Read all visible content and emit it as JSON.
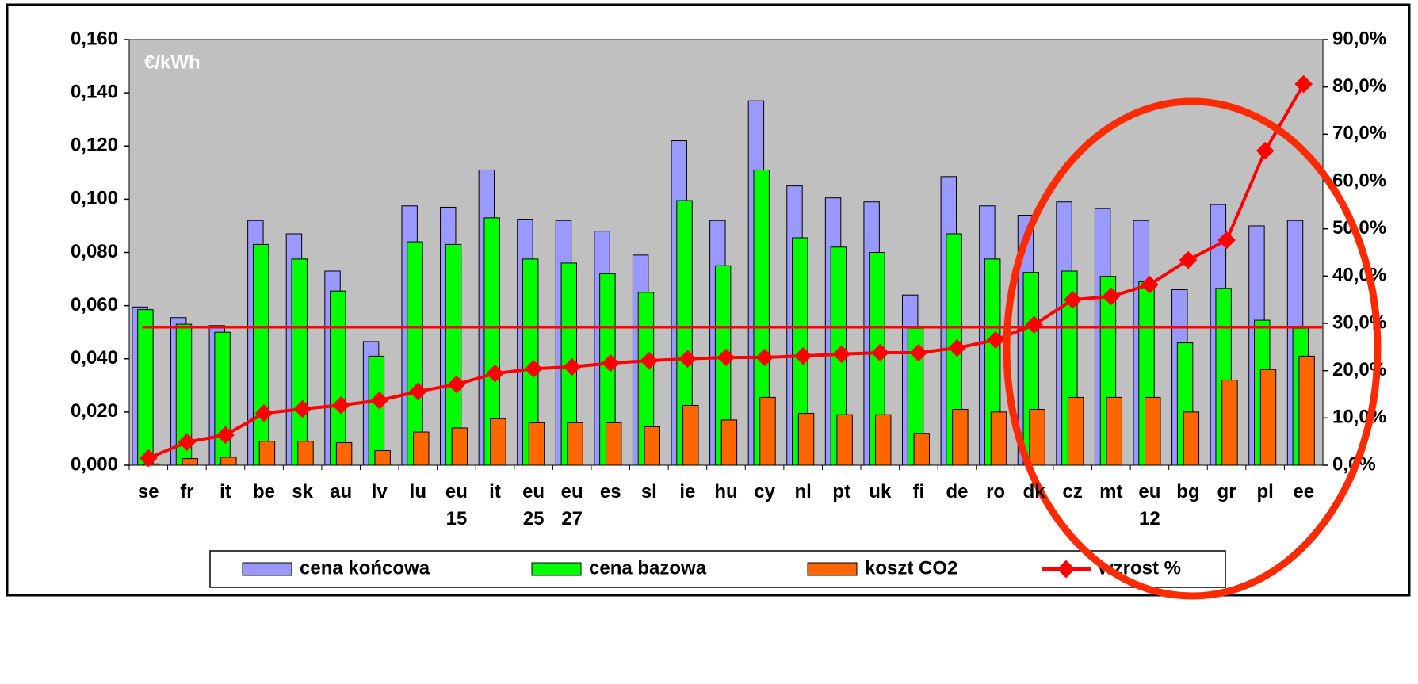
{
  "chart_data": {
    "type": "bar",
    "unit_label": "€/kWh",
    "categories": [
      "se",
      "fr",
      "it",
      "be",
      "sk",
      "au",
      "lv",
      "lu",
      "eu 15",
      "it",
      "eu 25",
      "eu 27",
      "es",
      "sl",
      "ie",
      "hu",
      "cy",
      "nl",
      "pt",
      "uk",
      "fi",
      "de",
      "ro",
      "dk",
      "cz",
      "mt",
      "eu 12",
      "bg",
      "gr",
      "pl",
      "ee"
    ],
    "series": [
      {
        "name": "cena końcowa",
        "color": "#9999ff",
        "values": [
          0.0595,
          0.0555,
          0.0525,
          0.092,
          0.087,
          0.073,
          0.0465,
          0.0975,
          0.097,
          0.111,
          0.0925,
          0.092,
          0.088,
          0.079,
          0.122,
          0.092,
          0.137,
          0.105,
          0.1005,
          0.099,
          0.064,
          0.1085,
          0.0975,
          0.094,
          0.099,
          0.0965,
          0.092,
          0.066,
          0.098,
          0.09,
          0.092
        ]
      },
      {
        "name": "cena bazowa",
        "color": "#00ff00",
        "values": [
          0.0585,
          0.053,
          0.05,
          0.083,
          0.0775,
          0.0655,
          0.041,
          0.084,
          0.083,
          0.093,
          0.0775,
          0.076,
          0.072,
          0.065,
          0.0995,
          0.075,
          0.111,
          0.0855,
          0.082,
          0.08,
          0.0515,
          0.087,
          0.0775,
          0.0725,
          0.073,
          0.071,
          0.069,
          0.046,
          0.0665,
          0.0545,
          0.0515
        ]
      },
      {
        "name": "koszt CO2",
        "color": "#ff6600",
        "values": [
          0.0005,
          0.0025,
          0.003,
          0.009,
          0.009,
          0.0085,
          0.0055,
          0.0125,
          0.014,
          0.0175,
          0.016,
          0.016,
          0.016,
          0.0145,
          0.0225,
          0.017,
          0.0255,
          0.0195,
          0.019,
          0.019,
          0.012,
          0.021,
          0.02,
          0.021,
          0.0255,
          0.0255,
          0.0255,
          0.02,
          0.032,
          0.036,
          0.041
        ]
      },
      {
        "name": "wzrost %",
        "color": "#ff0000",
        "type": "line",
        "axis": "y2",
        "values": [
          1.5,
          4.9,
          6.4,
          11,
          11.9,
          12.7,
          13.7,
          15.6,
          17.1,
          19.4,
          20.4,
          20.8,
          21.6,
          22.1,
          22.5,
          22.8,
          22.8,
          23.1,
          23.5,
          23.8,
          23.8,
          24.8,
          26.5,
          29.7,
          35,
          35.7,
          38.2,
          43.4,
          47.6,
          66.5,
          80.6
        ]
      }
    ],
    "reference_line": {
      "axis": "y2",
      "value": 29.2,
      "color": "#ff0000"
    },
    "ylim": [
      0,
      0.16
    ],
    "yticks": [
      {
        "value": 0,
        "label": "0,000"
      },
      {
        "value": 0.02,
        "label": "0,020"
      },
      {
        "value": 0.04,
        "label": "0,040"
      },
      {
        "value": 0.06,
        "label": "0,060"
      },
      {
        "value": 0.08,
        "label": "0,080"
      },
      {
        "value": 0.1,
        "label": "0,100"
      },
      {
        "value": 0.12,
        "label": "0,120"
      },
      {
        "value": 0.14,
        "label": "0,140"
      },
      {
        "value": 0.16,
        "label": "0,160"
      }
    ],
    "y2lim": [
      0,
      90
    ],
    "y2ticks": [
      {
        "value": 0,
        "label": "0,0%"
      },
      {
        "value": 10,
        "label": "10,0%"
      },
      {
        "value": 20,
        "label": "20,0%"
      },
      {
        "value": 30,
        "label": "30,0%"
      },
      {
        "value": 40,
        "label": "40,0%"
      },
      {
        "value": 50,
        "label": "50,0%"
      },
      {
        "value": 60,
        "label": "60,0%"
      },
      {
        "value": 70,
        "label": "70,0%"
      },
      {
        "value": 80,
        "label": "80,0%"
      },
      {
        "value": 90,
        "label": "90,0%"
      }
    ],
    "plot_background": "#c0c0c0"
  }
}
